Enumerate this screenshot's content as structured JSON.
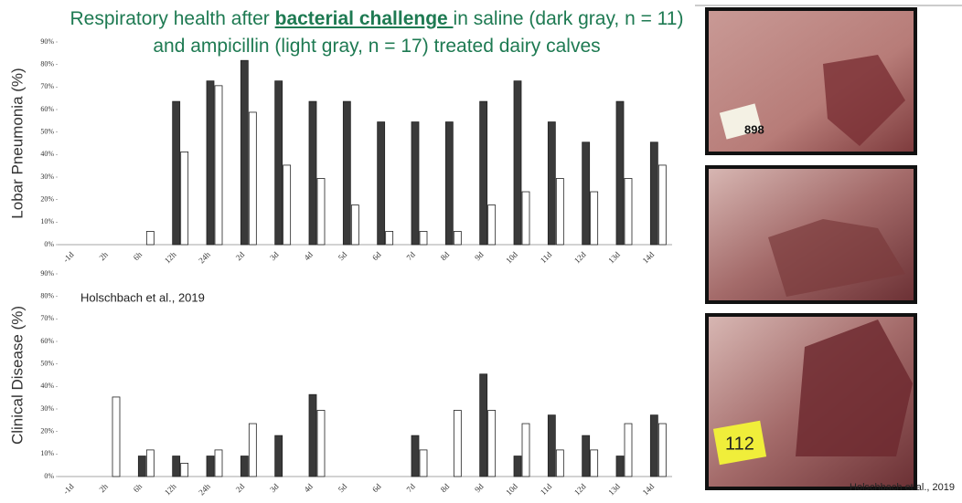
{
  "slide": {
    "title_parts": [
      "Respiratory health after ",
      "bacterial challenge ",
      "in saline (dark gray, n = 11) and ampicillin (light gray, n = 17) treated dairy calves"
    ],
    "citation": "Holschbach et al., 2019"
  },
  "photos": [
    "898",
    "112"
  ],
  "chart_data": [
    {
      "type": "bar",
      "y_label": "Lobar Pneumonia (%)",
      "categories": [
        "-1d",
        "2h",
        "6h",
        "12h",
        "24h",
        "2d",
        "3d",
        "4d",
        "5d",
        "6d",
        "7d",
        "8d",
        "9d",
        "10d",
        "11d",
        "12d",
        "13d",
        "14d"
      ],
      "series": [
        {
          "color": "#3a3a3a",
          "values": [
            0,
            0,
            0,
            63.6,
            72.7,
            81.8,
            72.7,
            63.6,
            63.6,
            54.5,
            54.5,
            54.5,
            63.6,
            72.7,
            54.5,
            45.5,
            63.6,
            45.5
          ]
        },
        {
          "color": "#ffffff",
          "values": [
            0,
            0,
            5.9,
            41.2,
            70.6,
            58.8,
            35.3,
            29.4,
            17.6,
            5.9,
            5.9,
            5.9,
            17.6,
            23.5,
            29.4,
            23.5,
            29.4,
            35.3
          ]
        }
      ],
      "ylim": [
        0,
        90
      ],
      "yticks": [
        {
          "value": 0,
          "label": "0%"
        },
        {
          "value": 10,
          "label": "10%"
        },
        {
          "value": 20,
          "label": "20%"
        },
        {
          "value": 30,
          "label": "30%"
        },
        {
          "value": 40,
          "label": "40%"
        },
        {
          "value": 50,
          "label": "50%"
        },
        {
          "value": 60,
          "label": "60%"
        },
        {
          "value": 70,
          "label": "70%"
        },
        {
          "value": 80,
          "label": "80%"
        },
        {
          "value": 90,
          "label": "90%"
        }
      ]
    },
    {
      "type": "bar",
      "y_label": "Clinical Disease (%)",
      "annotation": "Holschbach et al., 2019",
      "categories": [
        "-1d",
        "2h",
        "6h",
        "12h",
        "24h",
        "2d",
        "3d",
        "4d",
        "5d",
        "6d",
        "7d",
        "8d",
        "9d",
        "10d",
        "11d",
        "12d",
        "13d",
        "14d"
      ],
      "series": [
        {
          "color": "#3a3a3a",
          "values": [
            0,
            0,
            9.1,
            9.1,
            9.1,
            9.1,
            18.2,
            36.4,
            0,
            0,
            18.2,
            0,
            45.5,
            9.1,
            27.3,
            18.2,
            9.1,
            27.3
          ]
        },
        {
          "color": "#ffffff",
          "values": [
            0,
            35.3,
            11.8,
            5.9,
            11.8,
            23.5,
            0,
            29.4,
            0,
            0,
            11.8,
            29.4,
            29.4,
            23.5,
            11.8,
            11.8,
            23.5,
            23.5
          ]
        }
      ],
      "ylim": [
        0,
        90
      ],
      "yticks": [
        {
          "value": 0,
          "label": "0%"
        },
        {
          "value": 10,
          "label": "10%"
        },
        {
          "value": 20,
          "label": "20%"
        },
        {
          "value": 30,
          "label": "30%"
        },
        {
          "value": 40,
          "label": "40%"
        },
        {
          "value": 50,
          "label": "50%"
        },
        {
          "value": 60,
          "label": "60%"
        },
        {
          "value": 70,
          "label": "70%"
        },
        {
          "value": 80,
          "label": "80%"
        },
        {
          "value": 90,
          "label": "90%"
        }
      ]
    }
  ]
}
